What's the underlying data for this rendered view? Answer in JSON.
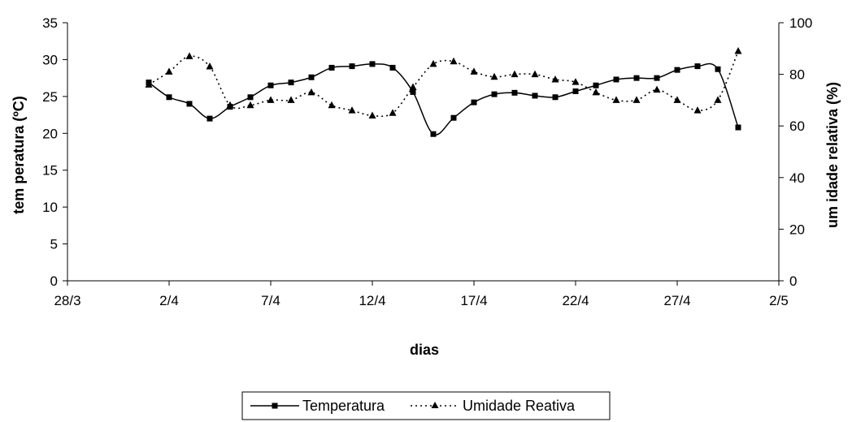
{
  "chart_data": {
    "type": "line",
    "xlabel": "dias",
    "ylabel": "tem peratura (ºC)",
    "y2label": "um idade relativa (%)",
    "x_range": [
      "2024-03-28",
      "2024-05-02"
    ],
    "x_ticks": [
      {
        "date": "2024-03-28",
        "label": "28/3"
      },
      {
        "date": "2024-04-02",
        "label": "2/4"
      },
      {
        "date": "2024-04-07",
        "label": "7/4"
      },
      {
        "date": "2024-04-12",
        "label": "12/4"
      },
      {
        "date": "2024-04-17",
        "label": "17/4"
      },
      {
        "date": "2024-04-22",
        "label": "22/4"
      },
      {
        "date": "2024-04-27",
        "label": "27/4"
      },
      {
        "date": "2024-05-02",
        "label": "2/5"
      }
    ],
    "ylim": [
      0,
      35
    ],
    "y_ticks": [
      "0",
      "5",
      "10",
      "15",
      "20",
      "25",
      "30",
      "35"
    ],
    "y2lim": [
      0,
      100
    ],
    "y2_ticks": [
      "0",
      "20",
      "40",
      "60",
      "80",
      "100"
    ],
    "grid": false,
    "legend_position": "bottom",
    "series": [
      {
        "name": "Temperatura",
        "axis": "left",
        "marker": "square",
        "line_style": "solid",
        "color": "#000000",
        "x": [
          "2024-04-01",
          "2024-04-02",
          "2024-04-03",
          "2024-04-04",
          "2024-04-05",
          "2024-04-06",
          "2024-04-07",
          "2024-04-08",
          "2024-04-09",
          "2024-04-10",
          "2024-04-11",
          "2024-04-12",
          "2024-04-13",
          "2024-04-14",
          "2024-04-15",
          "2024-04-16",
          "2024-04-17",
          "2024-04-18",
          "2024-04-19",
          "2024-04-20",
          "2024-04-21",
          "2024-04-22",
          "2024-04-23",
          "2024-04-24",
          "2024-04-25",
          "2024-04-26",
          "2024-04-27",
          "2024-04-28",
          "2024-04-29",
          "2024-04-30"
        ],
        "values": [
          26.9,
          24.9,
          24.0,
          22.0,
          23.6,
          24.9,
          26.5,
          26.9,
          27.6,
          28.9,
          29.1,
          29.4,
          28.9,
          25.6,
          19.9,
          22.1,
          24.2,
          25.3,
          25.5,
          25.1,
          24.9,
          25.7,
          26.5,
          27.3,
          27.5,
          27.5,
          28.6,
          29.1,
          28.7,
          20.8
        ]
      },
      {
        "name": "Umidade Reativa",
        "axis": "right",
        "marker": "triangle",
        "line_style": "dotted",
        "color": "#000000",
        "x": [
          "2024-04-01",
          "2024-04-02",
          "2024-04-03",
          "2024-04-04",
          "2024-04-05",
          "2024-04-06",
          "2024-04-07",
          "2024-04-08",
          "2024-04-09",
          "2024-04-10",
          "2024-04-11",
          "2024-04-12",
          "2024-04-13",
          "2024-04-14",
          "2024-04-15",
          "2024-04-16",
          "2024-04-17",
          "2024-04-18",
          "2024-04-19",
          "2024-04-20",
          "2024-04-21",
          "2024-04-22",
          "2024-04-23",
          "2024-04-24",
          "2024-04-25",
          "2024-04-26",
          "2024-04-27",
          "2024-04-28",
          "2024-04-29",
          "2024-04-30"
        ],
        "values": [
          76,
          81,
          87,
          83,
          68,
          68,
          70,
          70,
          73,
          68,
          66,
          64,
          65,
          75,
          84,
          85,
          81,
          79,
          80,
          80,
          78,
          77,
          73,
          70,
          70,
          74,
          70,
          66,
          70,
          89
        ]
      }
    ]
  }
}
